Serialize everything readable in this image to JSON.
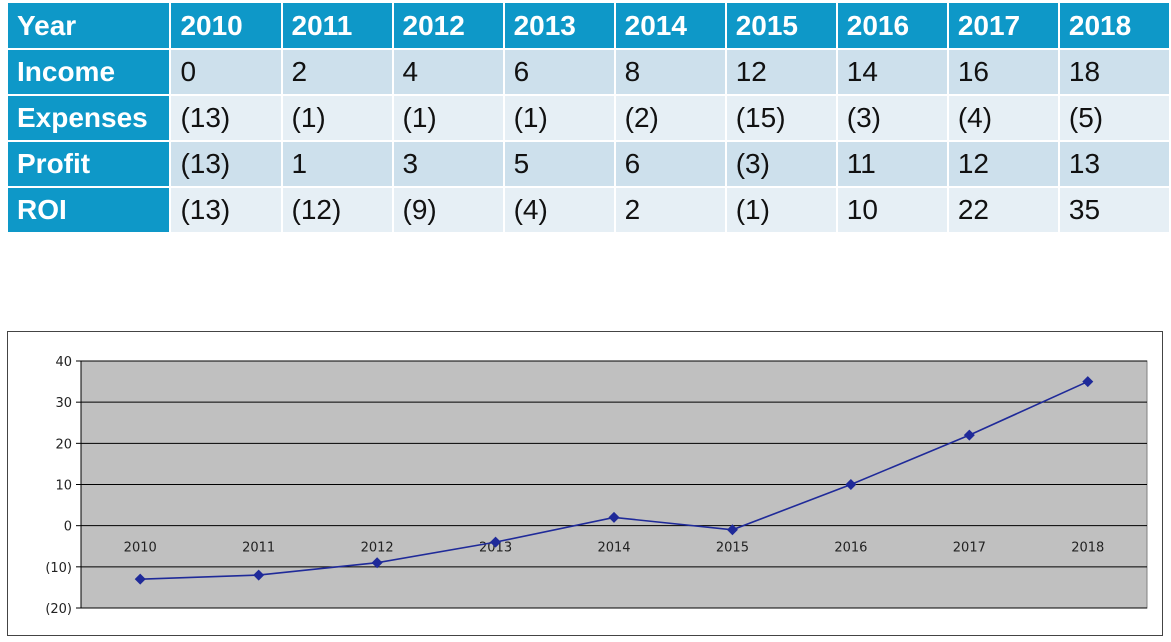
{
  "table": {
    "header_label": "Year",
    "years": [
      "2010",
      "2011",
      "2012",
      "2013",
      "2014",
      "2015",
      "2016",
      "2017",
      "2018"
    ],
    "rows": [
      {
        "label": "Income",
        "values": [
          "0",
          "2",
          "4",
          "6",
          "8",
          "12",
          "14",
          "16",
          "18"
        ]
      },
      {
        "label": "Expenses",
        "values": [
          "(13)",
          "(1)",
          "(1)",
          "(1)",
          "(2)",
          "(15)",
          "(3)",
          "(4)",
          "(5)"
        ]
      },
      {
        "label": "Profit",
        "values": [
          "(13)",
          "1",
          "3",
          "5",
          "6",
          "(3)",
          "11",
          "12",
          "13"
        ]
      },
      {
        "label": "ROI",
        "values": [
          "(13)",
          "(12)",
          "(9)",
          "(4)",
          "2",
          "(1)",
          "10",
          "22",
          "35"
        ]
      }
    ],
    "colors": {
      "header_bg": "#0e98c8",
      "row_odd_bg": "#cde0ec",
      "row_even_bg": "#e6eff5"
    }
  },
  "chart_data": {
    "type": "line",
    "title": "",
    "xlabel": "",
    "ylabel": "",
    "categories": [
      "2010",
      "2011",
      "2012",
      "2013",
      "2014",
      "2015",
      "2016",
      "2017",
      "2018"
    ],
    "series": [
      {
        "values": [
          -13,
          -12,
          -9,
          -4,
          2,
          -1,
          10,
          22,
          35
        ],
        "color": "#1f2a99",
        "marker": "diamond"
      }
    ],
    "ylim": [
      -20,
      40
    ],
    "yticks": [
      40,
      30,
      20,
      10,
      0,
      -10,
      -20
    ],
    "ytick_labels": [
      "40",
      "30",
      "20",
      "10",
      "0",
      "(10)",
      "(20)"
    ],
    "grid": true,
    "plot_background": "#c0c0c0",
    "x_labels_at_zero_line": true,
    "legend": "none"
  }
}
